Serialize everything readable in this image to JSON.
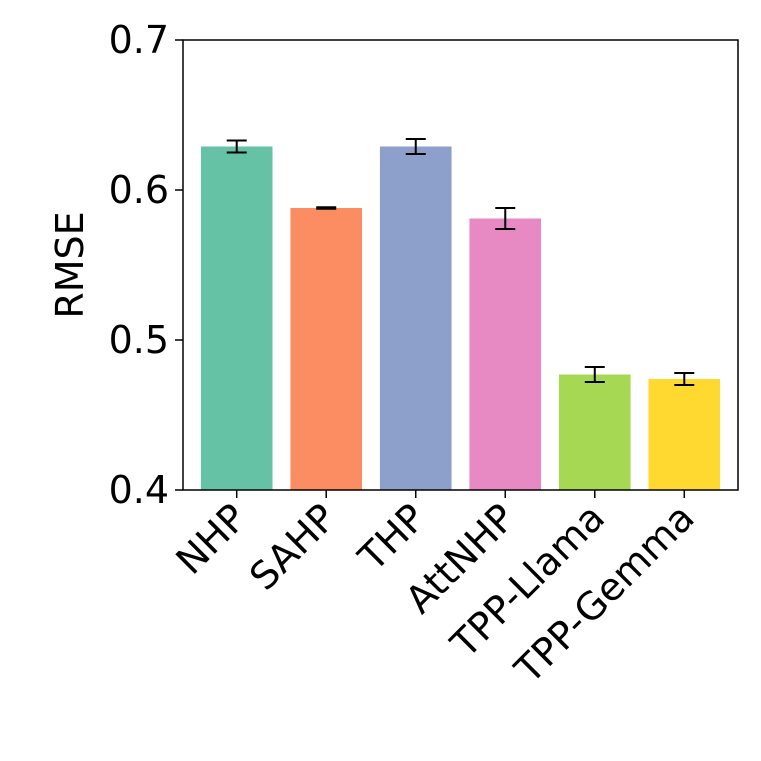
{
  "chart_data": {
    "type": "bar",
    "title": "",
    "xlabel": "",
    "ylabel": "RMSE",
    "ylim": [
      0.4,
      0.7
    ],
    "yticks": [
      0.4,
      0.5,
      0.6,
      0.7
    ],
    "ytick_labels": [
      "0.4",
      "0.5",
      "0.6",
      "0.7"
    ],
    "grid": false,
    "categories": [
      "NHP",
      "SAHP",
      "THP",
      "AttNHP",
      "TPP-Llama",
      "TPP-Gemma"
    ],
    "values": [
      0.629,
      0.588,
      0.629,
      0.581,
      0.477,
      0.474
    ],
    "errors": [
      0.004,
      0.0005,
      0.005,
      0.007,
      0.005,
      0.004
    ],
    "colors": [
      "#66c2a5",
      "#fc8d62",
      "#8da0cb",
      "#e78ac3",
      "#a6d854",
      "#ffd92f"
    ]
  }
}
